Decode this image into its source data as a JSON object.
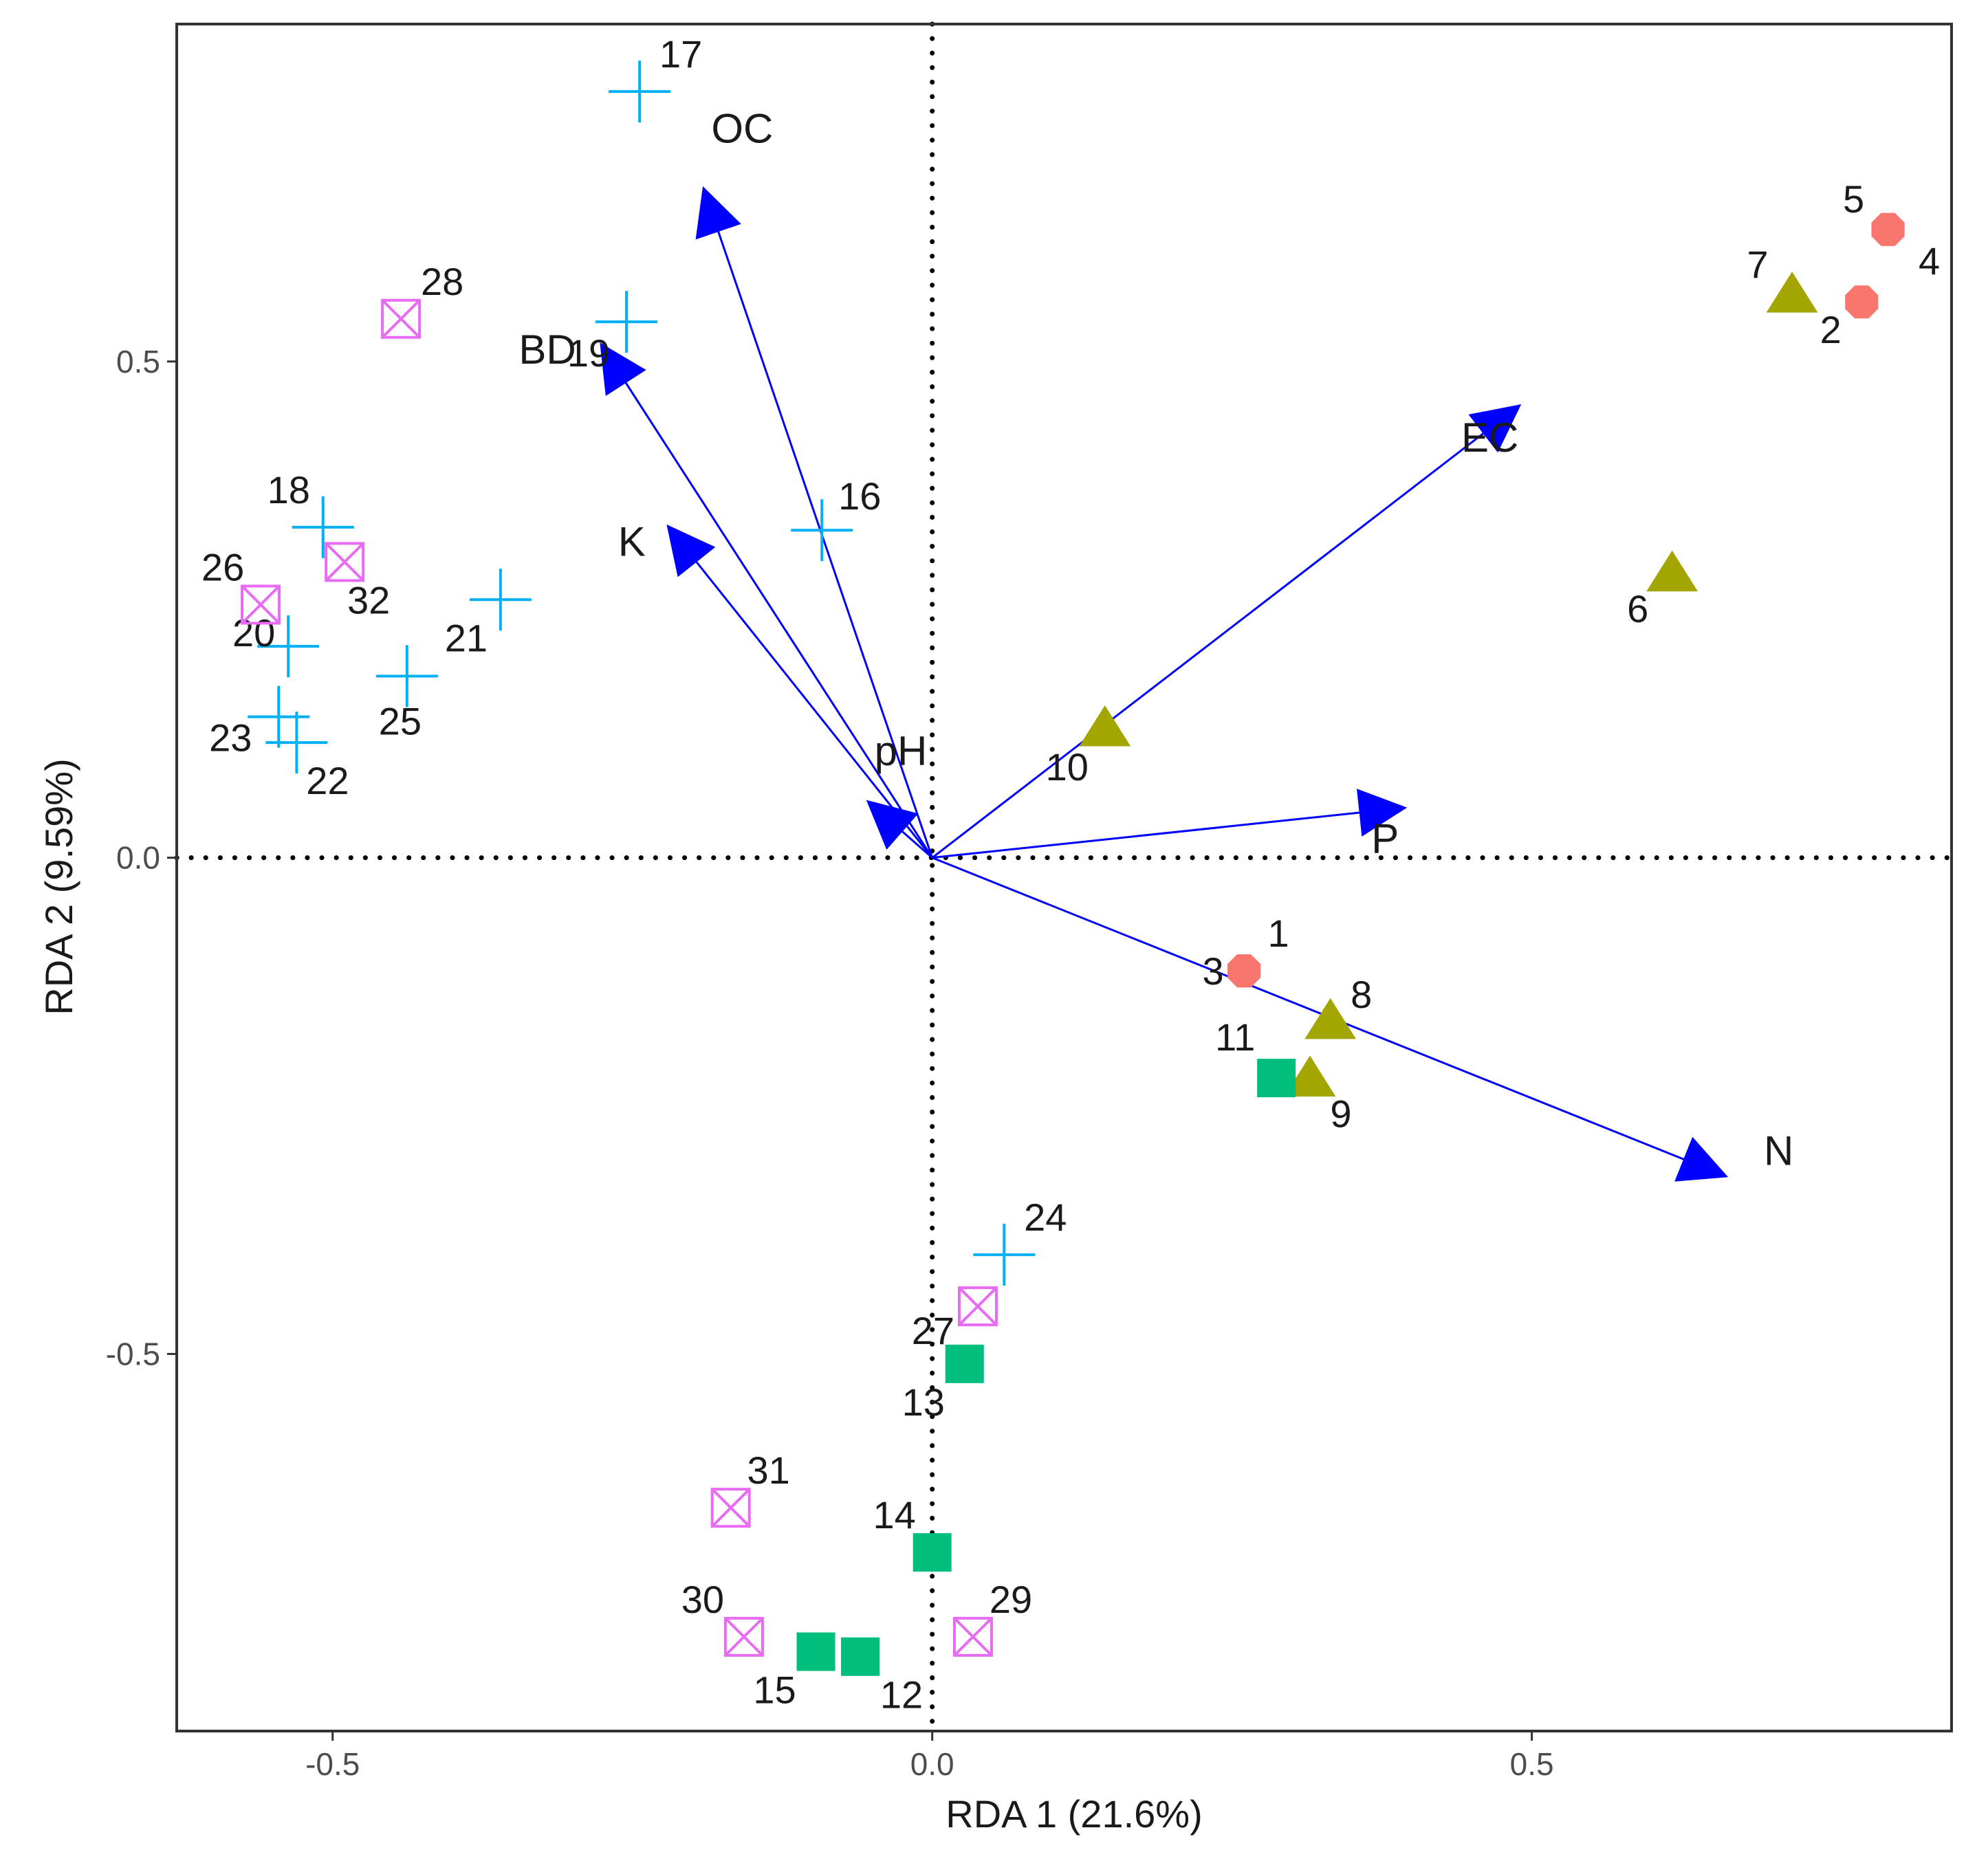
{
  "chart_data": {
    "type": "scatter",
    "title": "",
    "xlabel": "RDA 1 (21.6%)",
    "ylabel": "RDA 2 (9.59%)",
    "xlim": [
      -0.63,
      0.85
    ],
    "ylim": [
      -0.88,
      0.84
    ],
    "x_ticks": [
      -0.5,
      0.0,
      0.5
    ],
    "y_ticks": [
      -0.5,
      0.0,
      0.5
    ],
    "x_tick_labels": [
      "-0.5",
      "0.0",
      "0.5"
    ],
    "y_tick_labels": [
      "-0.5",
      "0.0",
      "0.5"
    ],
    "zero_lines": true,
    "grid": false,
    "colors": {
      "circle": "#f8766d",
      "triangle": "#a3a500",
      "square": "#00bf7d",
      "plus": "#00b0f6",
      "boxx": "#e76bf3",
      "arrow": "#0000ff"
    },
    "series": [
      {
        "name": "group-1",
        "shape": "circle",
        "points": [
          {
            "label": "1",
            "x": 0.26,
            "y": -0.114
          },
          {
            "label": "2",
            "x": 0.775,
            "y": 0.56
          },
          {
            "label": "3",
            "x": 0.26,
            "y": -0.114
          },
          {
            "label": "4",
            "x": 0.797,
            "y": 0.633
          },
          {
            "label": "5",
            "x": 0.797,
            "y": 0.633
          }
        ]
      },
      {
        "name": "group-2",
        "shape": "triangle",
        "points": [
          {
            "label": "6",
            "x": 0.617,
            "y": 0.286
          },
          {
            "label": "7",
            "x": 0.717,
            "y": 0.567
          },
          {
            "label": "8",
            "x": 0.332,
            "y": -0.165
          },
          {
            "label": "9",
            "x": 0.315,
            "y": -0.223
          },
          {
            "label": "10",
            "x": 0.144,
            "y": 0.13
          }
        ]
      },
      {
        "name": "group-3",
        "shape": "square",
        "points": [
          {
            "label": "11",
            "x": 0.287,
            "y": -0.222
          },
          {
            "label": "12",
            "x": -0.06,
            "y": -0.805
          },
          {
            "label": "13",
            "x": 0.027,
            "y": -0.51
          },
          {
            "label": "14",
            "x": 0.0,
            "y": -0.7
          },
          {
            "label": "15",
            "x": -0.097,
            "y": -0.8
          }
        ]
      },
      {
        "name": "group-4",
        "shape": "plus",
        "points": [
          {
            "label": "16",
            "x": -0.092,
            "y": 0.33
          },
          {
            "label": "17",
            "x": -0.244,
            "y": 0.772
          },
          {
            "label": "18",
            "x": -0.508,
            "y": 0.333
          },
          {
            "label": "19",
            "x": -0.255,
            "y": 0.54
          },
          {
            "label": "20",
            "x": -0.537,
            "y": 0.213
          },
          {
            "label": "21",
            "x": -0.36,
            "y": 0.26
          },
          {
            "label": "22",
            "x": -0.53,
            "y": 0.116
          },
          {
            "label": "23",
            "x": -0.545,
            "y": 0.142
          },
          {
            "label": "24",
            "x": 0.06,
            "y": -0.4
          },
          {
            "label": "25",
            "x": -0.438,
            "y": 0.183
          }
        ]
      },
      {
        "name": "group-5",
        "shape": "boxx",
        "points": [
          {
            "label": "26",
            "x": -0.56,
            "y": 0.255
          },
          {
            "label": "27",
            "x": 0.038,
            "y": -0.452
          },
          {
            "label": "28",
            "x": -0.443,
            "y": 0.543
          },
          {
            "label": "29",
            "x": 0.034,
            "y": -0.785
          },
          {
            "label": "30",
            "x": -0.157,
            "y": -0.785
          },
          {
            "label": "31",
            "x": -0.168,
            "y": -0.655
          },
          {
            "label": "32",
            "x": -0.49,
            "y": 0.298
          }
        ]
      }
    ],
    "arrows": [
      {
        "label": "OC",
        "x": -0.19,
        "y": 0.672
      },
      {
        "label": "BD",
        "x": -0.275,
        "y": 0.515
      },
      {
        "label": "K",
        "x": -0.219,
        "y": 0.332
      },
      {
        "label": "pH",
        "x": -0.052,
        "y": 0.055
      },
      {
        "label": "EC",
        "x": 0.488,
        "y": 0.454
      },
      {
        "label": "P",
        "x": 0.392,
        "y": 0.05
      },
      {
        "label": "N",
        "x": 0.66,
        "y": -0.32
      }
    ]
  }
}
